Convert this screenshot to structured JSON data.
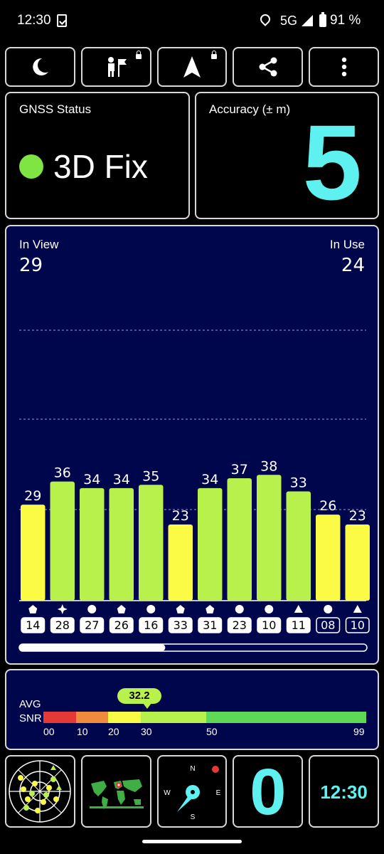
{
  "statusbar": {
    "time": "12:30",
    "network": "5G",
    "battery": "91 %"
  },
  "toolbar": {
    "buttons": [
      {
        "icon": "night-mode-icon",
        "locked": false
      },
      {
        "icon": "user-flag-icon",
        "locked": true
      },
      {
        "icon": "navigation-arrow-icon",
        "locked": true
      },
      {
        "icon": "share-icon",
        "locked": false
      },
      {
        "icon": "more-vert-icon",
        "locked": false
      }
    ]
  },
  "gnss": {
    "title": "GNSS Status",
    "fix": "3D Fix",
    "fix_color": "#7fe542"
  },
  "accuracy": {
    "title": "Accuracy (± m)",
    "value": "5",
    "color": "#5ff0f0"
  },
  "satellites": {
    "in_view_label": "In View",
    "in_view": "29",
    "in_use_label": "In Use",
    "in_use": "24",
    "colors": {
      "yellow": "#fbfb45",
      "green": "#b8f04c"
    },
    "bars": [
      {
        "snr": 29,
        "prn": "14",
        "shape": "pentagon",
        "used": true
      },
      {
        "snr": 36,
        "prn": "28",
        "shape": "star",
        "used": true
      },
      {
        "snr": 34,
        "prn": "27",
        "shape": "circle",
        "used": true
      },
      {
        "snr": 34,
        "prn": "26",
        "shape": "pentagon",
        "used": true
      },
      {
        "snr": 35,
        "prn": "16",
        "shape": "circle",
        "used": true
      },
      {
        "snr": 23,
        "prn": "33",
        "shape": "pentagon",
        "used": true
      },
      {
        "snr": 34,
        "prn": "31",
        "shape": "pentagon",
        "used": true
      },
      {
        "snr": 37,
        "prn": "23",
        "shape": "circle",
        "used": true
      },
      {
        "snr": 38,
        "prn": "10",
        "shape": "circle",
        "used": true
      },
      {
        "snr": 33,
        "prn": "11",
        "shape": "triangle",
        "used": true
      },
      {
        "snr": 26,
        "prn": "08",
        "shape": "circle",
        "used": false
      },
      {
        "snr": 23,
        "prn": "10",
        "shape": "triangle",
        "used": false
      }
    ],
    "scroll_fraction": 0.42
  },
  "snr": {
    "label_line1": "AVG",
    "label_line2": "SNR",
    "average": "32.2",
    "ticks": [
      "00",
      "10",
      "20",
      "30",
      "50",
      "99"
    ],
    "segment_colors": [
      "#e53935",
      "#f08a3c",
      "#fbfb45",
      "#b8f04c",
      "#5fd856"
    ]
  },
  "bottom": {
    "count": "0",
    "time": "12:30",
    "compass": {
      "n": "N",
      "e": "E",
      "s": "S",
      "w": "W"
    }
  }
}
